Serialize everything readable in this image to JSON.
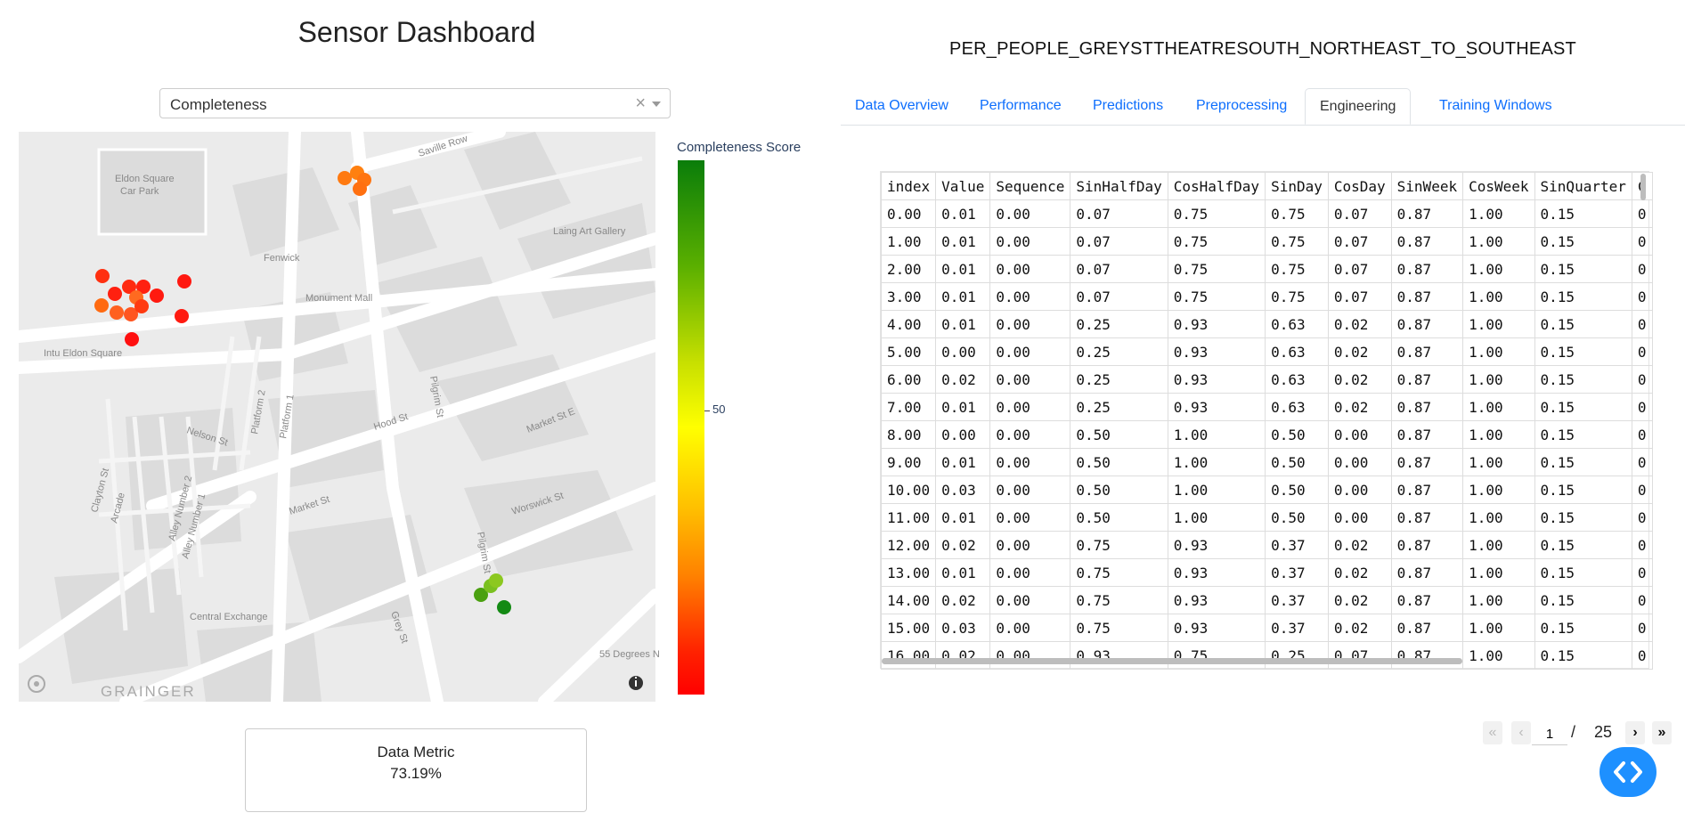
{
  "header": {
    "title": "Sensor Dashboard",
    "sensor_name": "PER_PEOPLE_GREYSTTHEATRESOUTH_NORTHEAST_TO_SOUTHEAST"
  },
  "dropdown": {
    "value": "Completeness",
    "clear_symbol": "×"
  },
  "map": {
    "labels": [
      "Eldon Square",
      "Car Park",
      "Saville Row",
      "Laing Art Gallery",
      "Fenwick",
      "Monument Mall",
      "Intu Eldon Square",
      "Platform 2",
      "Platform 1",
      "Pilgrim St",
      "Hood St",
      "Market St E",
      "Nelson St",
      "Clayton St",
      "Arcade",
      "Alley Number 2",
      "Alley Number 1",
      "Market St",
      "Worswick St",
      "Pilgrim St",
      "Central Exchange",
      "Grey St",
      "55 Degrees N",
      "GRAINGER"
    ],
    "colorbar_title": "Completeness Score",
    "colorbar_tick": "50"
  },
  "metric": {
    "label": "Data Metric",
    "value": "73.19%"
  },
  "tabs": [
    "Data Overview",
    "Performance",
    "Predictions",
    "Preprocessing",
    "Engineering",
    "Training Windows"
  ],
  "active_tab": "Engineering",
  "table": {
    "columns": [
      "index",
      "Value",
      "Sequence",
      "SinHalfDay",
      "CosHalfDay",
      "SinDay",
      "CosDay",
      "SinWeek",
      "CosWeek",
      "SinQuarter",
      "C"
    ],
    "rows": [
      [
        "0.00",
        "0.01",
        "0.00",
        "0.07",
        "0.75",
        "0.75",
        "0.07",
        "0.87",
        "1.00",
        "0.15",
        "0"
      ],
      [
        "1.00",
        "0.01",
        "0.00",
        "0.07",
        "0.75",
        "0.75",
        "0.07",
        "0.87",
        "1.00",
        "0.15",
        "0"
      ],
      [
        "2.00",
        "0.01",
        "0.00",
        "0.07",
        "0.75",
        "0.75",
        "0.07",
        "0.87",
        "1.00",
        "0.15",
        "0"
      ],
      [
        "3.00",
        "0.01",
        "0.00",
        "0.07",
        "0.75",
        "0.75",
        "0.07",
        "0.87",
        "1.00",
        "0.15",
        "0"
      ],
      [
        "4.00",
        "0.01",
        "0.00",
        "0.25",
        "0.93",
        "0.63",
        "0.02",
        "0.87",
        "1.00",
        "0.15",
        "0"
      ],
      [
        "5.00",
        "0.00",
        "0.00",
        "0.25",
        "0.93",
        "0.63",
        "0.02",
        "0.87",
        "1.00",
        "0.15",
        "0"
      ],
      [
        "6.00",
        "0.02",
        "0.00",
        "0.25",
        "0.93",
        "0.63",
        "0.02",
        "0.87",
        "1.00",
        "0.15",
        "0"
      ],
      [
        "7.00",
        "0.01",
        "0.00",
        "0.25",
        "0.93",
        "0.63",
        "0.02",
        "0.87",
        "1.00",
        "0.15",
        "0"
      ],
      [
        "8.00",
        "0.00",
        "0.00",
        "0.50",
        "1.00",
        "0.50",
        "0.00",
        "0.87",
        "1.00",
        "0.15",
        "0"
      ],
      [
        "9.00",
        "0.01",
        "0.00",
        "0.50",
        "1.00",
        "0.50",
        "0.00",
        "0.87",
        "1.00",
        "0.15",
        "0"
      ],
      [
        "10.00",
        "0.03",
        "0.00",
        "0.50",
        "1.00",
        "0.50",
        "0.00",
        "0.87",
        "1.00",
        "0.15",
        "0"
      ],
      [
        "11.00",
        "0.01",
        "0.00",
        "0.50",
        "1.00",
        "0.50",
        "0.00",
        "0.87",
        "1.00",
        "0.15",
        "0"
      ],
      [
        "12.00",
        "0.02",
        "0.00",
        "0.75",
        "0.93",
        "0.37",
        "0.02",
        "0.87",
        "1.00",
        "0.15",
        "0"
      ],
      [
        "13.00",
        "0.01",
        "0.00",
        "0.75",
        "0.93",
        "0.37",
        "0.02",
        "0.87",
        "1.00",
        "0.15",
        "0"
      ],
      [
        "14.00",
        "0.02",
        "0.00",
        "0.75",
        "0.93",
        "0.37",
        "0.02",
        "0.87",
        "1.00",
        "0.15",
        "0"
      ],
      [
        "15.00",
        "0.03",
        "0.00",
        "0.75",
        "0.93",
        "0.37",
        "0.02",
        "0.87",
        "1.00",
        "0.15",
        "0"
      ],
      [
        "16.00",
        "0.02",
        "0.00",
        "0.93",
        "0.75",
        "0.25",
        "0.07",
        "0.87",
        "1.00",
        "0.15",
        "0"
      ]
    ]
  },
  "pagination": {
    "current_page": "1",
    "separator": "/",
    "total_pages": "25",
    "first_icon": "«",
    "prev_icon": "‹",
    "next_icon": "›",
    "last_icon": "»"
  },
  "colors": {
    "accent": "#0d6efd",
    "fab": "#1e90ff"
  }
}
